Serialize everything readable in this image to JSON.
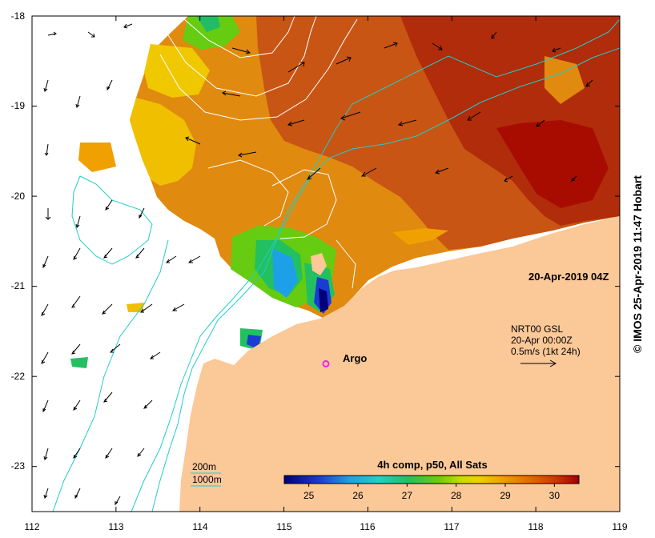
{
  "map": {
    "timestamp": "20-Apr-2019 04Z",
    "colors": {
      "land": "#fbc898",
      "isobath": "#22cccc",
      "contour": "#ffffff",
      "argo": "#ee22ee"
    },
    "x_axis": {
      "range": [
        112,
        119
      ],
      "ticks": [
        "112",
        "113",
        "114",
        "115",
        "116",
        "117",
        "118",
        "119"
      ]
    },
    "y_axis": {
      "range": [
        -23.5,
        -18
      ],
      "ticks": [
        "-18",
        "-19",
        "-20",
        "-21",
        "-22",
        "-23"
      ]
    },
    "argo_label": "Argo",
    "argo_position": {
      "lon": 115.5,
      "lat": -21.86
    }
  },
  "current_legend": {
    "line1": "NRT00 GSL",
    "line2": "20-Apr 00:00Z",
    "line3": "0.5m/s (1kt 24h)"
  },
  "isobath_legend": {
    "items": [
      {
        "label": "200m"
      },
      {
        "label": "1000m"
      }
    ]
  },
  "colorbar": {
    "title": "4h comp, p50, All Sats",
    "min": 24.5,
    "max": 30.5,
    "ticks": [
      "25",
      "26",
      "27",
      "28",
      "29",
      "30"
    ]
  },
  "credit": "© IMOS 25-Apr-2019 11:47 Hobart"
}
